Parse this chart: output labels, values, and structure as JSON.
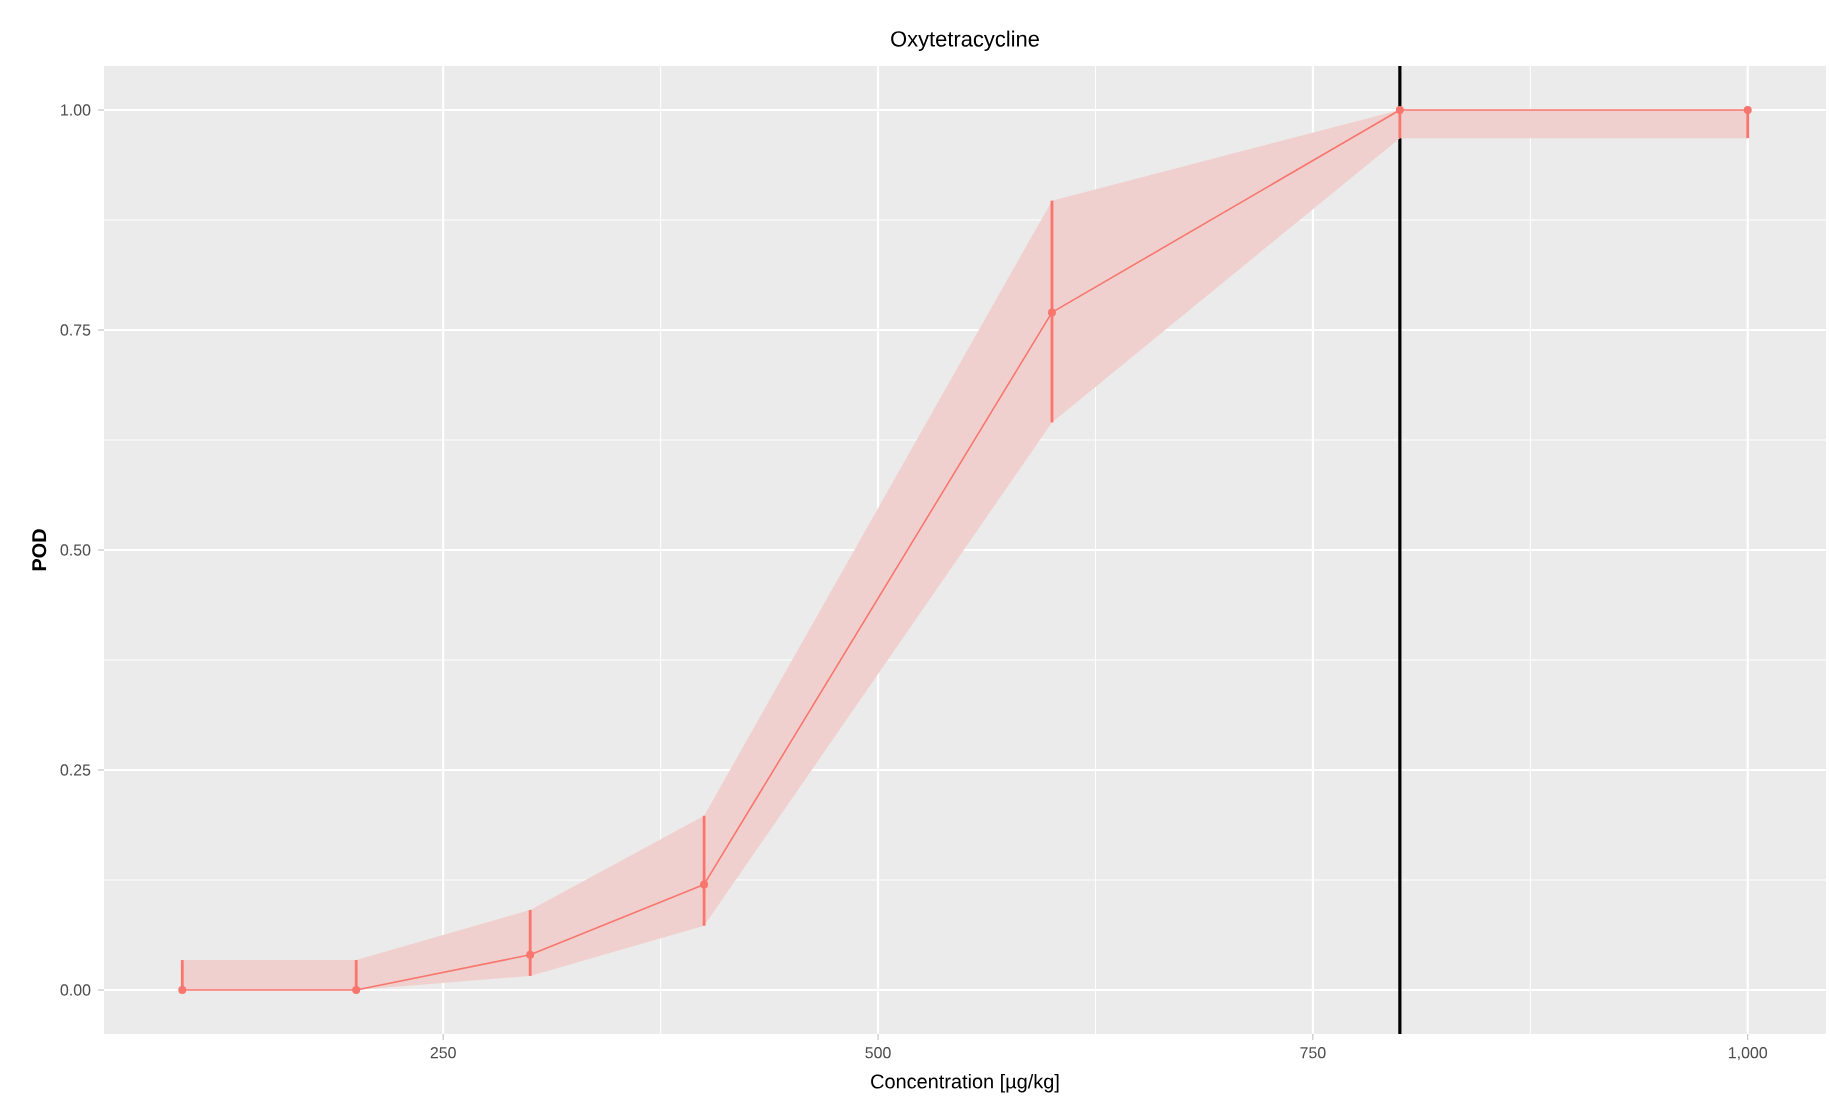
{
  "chart_data": {
    "type": "line",
    "title": "Oxytetracycline",
    "xlabel": "Concentration [µg/kg]",
    "ylabel": "POD",
    "x": [
      100,
      200,
      300,
      400,
      600,
      800,
      1000
    ],
    "series": [
      {
        "color": "#f8766d",
        "values": [
          0,
          0,
          0.04,
          0.12,
          0.77,
          1.0,
          1.0
        ],
        "lower": [
          0,
          0,
          0.016,
          0.073,
          0.645,
          0.968,
          0.968
        ],
        "upper": [
          0.034,
          0.034,
          0.091,
          0.198,
          0.897,
          1.0,
          1.0
        ],
        "errors": [
          [
            0,
            0.034
          ],
          [
            0,
            0.034
          ],
          [
            0.016,
            0.091
          ],
          [
            0.073,
            0.198
          ],
          [
            0.645,
            0.897
          ],
          [
            0.968,
            1.0
          ],
          [
            0.968,
            1.0
          ]
        ]
      }
    ],
    "xlim": [
      55,
      1045
    ],
    "ylim": [
      -0.05,
      1.05
    ],
    "xticks": [
      250,
      500,
      750,
      {
        "value": 1000,
        "label": "1,000"
      }
    ],
    "yticks": [
      {
        "value": 0,
        "label": "0.00"
      },
      {
        "value": 0.25,
        "label": "0.25"
      },
      {
        "value": 0.5,
        "label": "0.50"
      },
      {
        "value": 0.75,
        "label": "0.75"
      },
      {
        "value": 1.0,
        "label": "1.00"
      }
    ],
    "grid": true,
    "marker": "circle",
    "line_style": "solid",
    "ref_lines": [
      {
        "axis": "x",
        "value": 800,
        "color": "#000000"
      }
    ]
  }
}
